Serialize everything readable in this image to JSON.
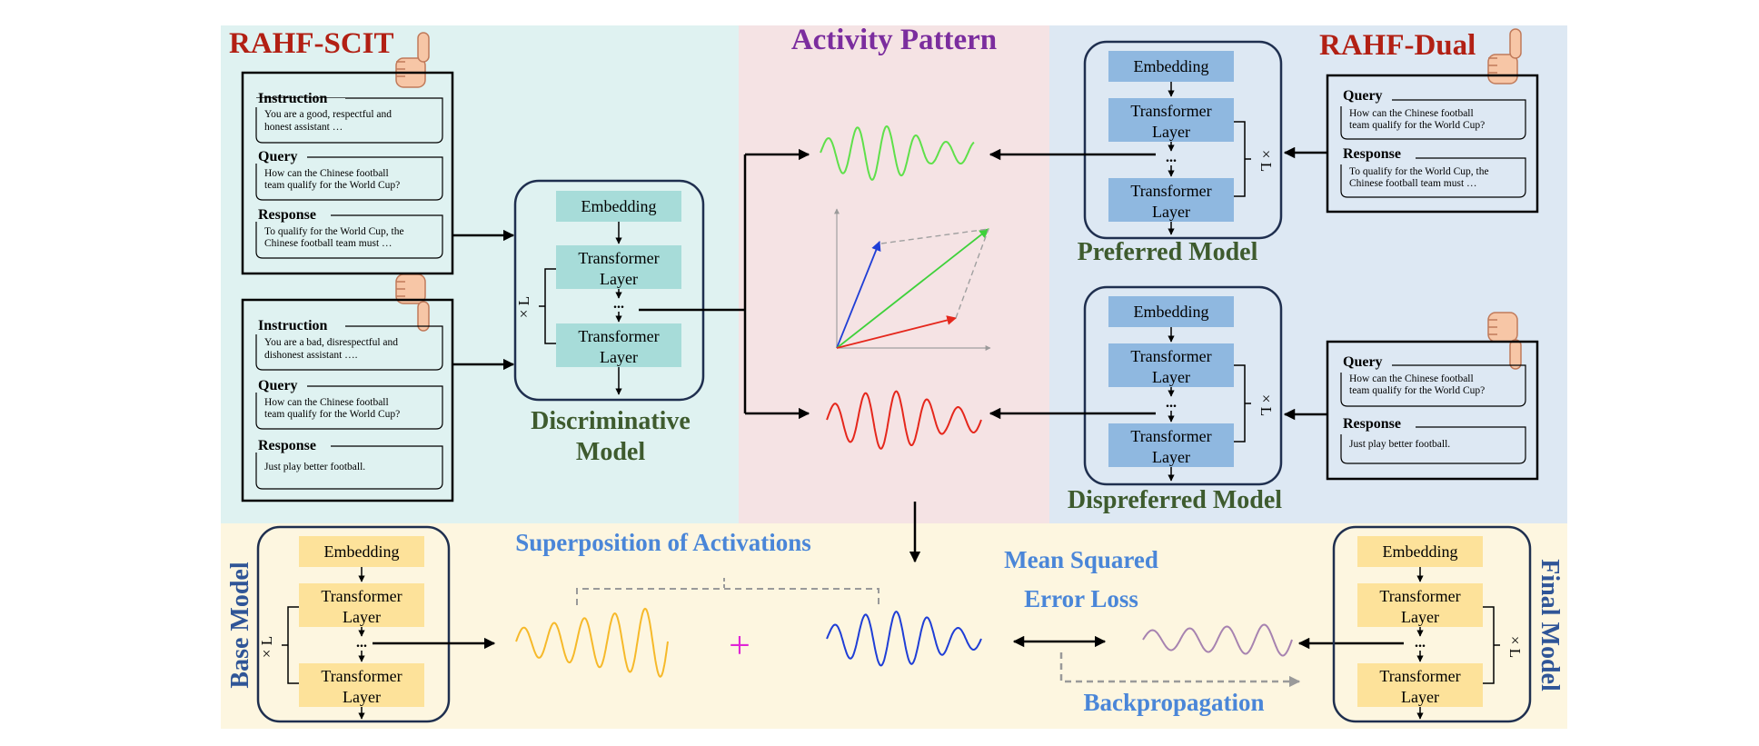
{
  "headings": {
    "rahf_scit": "RAHF-SCIT",
    "activity_pattern": "Activity Pattern",
    "rahf_dual": "RAHF-Dual",
    "superposition": "Superposition of Activations",
    "mse_line1": "Mean Squared",
    "mse_line2": "Error Loss",
    "backprop": "Backpropagation"
  },
  "model_names": {
    "discriminative_line1": "Discriminative",
    "discriminative_line2": "Model",
    "preferred": "Preferred Model",
    "dispreferred": "Dispreferred Model",
    "base": "Base Model",
    "final": "Final Model"
  },
  "model_parts": {
    "embedding": "Embedding",
    "transformer_line1": "Transformer",
    "transformer_line2": "Layer",
    "repeat": "× L",
    "ellipsis": "..."
  },
  "scit_positive": {
    "instruction_label": "Instruction",
    "instruction_line1": "You are a good, respectful and",
    "instruction_line2": "honest assistant …",
    "query_label": "Query",
    "query_line1": "How can the Chinese football",
    "query_line2": "team qualify for the World Cup?",
    "response_label": "Response",
    "response_line1": "To qualify for the World Cup, the",
    "response_line2": "Chinese football team must …"
  },
  "scit_negative": {
    "instruction_label": "Instruction",
    "instruction_line1": "You are a bad, disrespectful and",
    "instruction_line2": "dishonest assistant ….",
    "query_label": "Query",
    "query_line1": "How can the Chinese football",
    "query_line2": "team qualify for the World Cup?",
    "response_label": "Response",
    "response_line1": "Just play better football."
  },
  "dual_positive": {
    "query_label": "Query",
    "query_line1": "How can the Chinese football",
    "query_line2": "team qualify for the World Cup?",
    "response_label": "Response",
    "response_line1": "To qualify for the World Cup, the",
    "response_line2": "Chinese football team must …"
  },
  "dual_negative": {
    "query_label": "Query",
    "query_line1": "How can the Chinese football",
    "query_line2": "team qualify for the World Cup?",
    "response_label": "Response",
    "response_line1": "Just play better football."
  },
  "plus_sign": "+",
  "colors": {
    "scit_bg": "#dff2f1",
    "activity_bg": "#f5e3e4",
    "dual_bg": "#dde8f3",
    "bottom_bg": "#fdf6e0",
    "teal_box": "#a7dcd9",
    "blue_box": "#8fb8e0",
    "yellow_box": "#fde29a",
    "title_red": "#b22014",
    "title_purple": "#7b2d9e",
    "title_blue": "#4a86d8",
    "model_green": "#3e5b2e",
    "model_blue": "#2f5597",
    "wave_green": "#5fe04a",
    "wave_red": "#e5271c",
    "wave_yellow": "#f6b92a",
    "wave_blue": "#1f3ed6",
    "wave_purple": "#a783b0",
    "plus_magenta": "#e025d6"
  }
}
